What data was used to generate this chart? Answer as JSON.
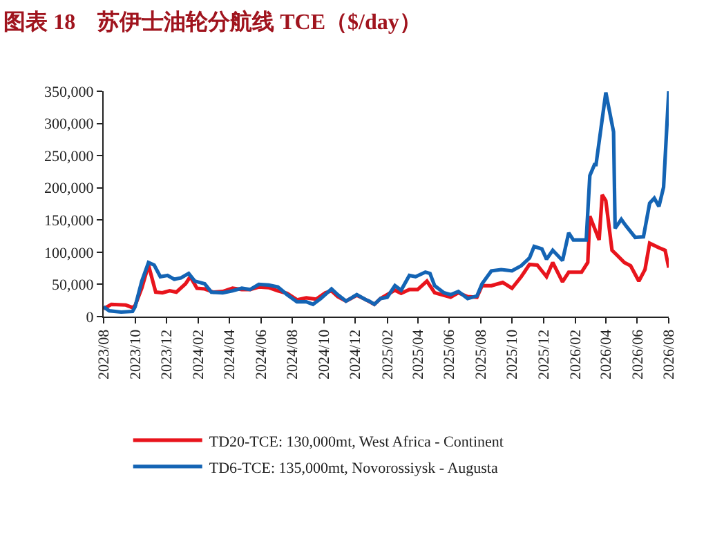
{
  "chart_data": {
    "type": "line",
    "title": "图表 18　苏伊士油轮分航线 TCE（$/day）",
    "xlim": [
      "2023-08-01",
      "2026-08-01"
    ],
    "xticks": [
      {
        "value": "2023-08",
        "label": "2023/08"
      },
      {
        "value": "2023-10",
        "label": "2023/10"
      },
      {
        "value": "2023-12",
        "label": "2023/12"
      },
      {
        "value": "2024-02",
        "label": "2024/02"
      },
      {
        "value": "2024-04",
        "label": "2024/04"
      },
      {
        "value": "2024-06",
        "label": "2024/06"
      },
      {
        "value": "2024-08",
        "label": "2024/08"
      },
      {
        "value": "2024-10",
        "label": "2024/10"
      },
      {
        "value": "2024-12",
        "label": "2024/12"
      },
      {
        "value": "2025-02",
        "label": "2025/02"
      },
      {
        "value": "2025-04",
        "label": "2025/04"
      },
      {
        "value": "2025-06",
        "label": "2025/06"
      },
      {
        "value": "2025-08",
        "label": "2025/08"
      },
      {
        "value": "2025-10",
        "label": "2025/10"
      },
      {
        "value": "2025-12",
        "label": "2025/12"
      },
      {
        "value": "2026-02",
        "label": "2026/02"
      },
      {
        "value": "2026-04",
        "label": "2026/04"
      },
      {
        "value": "2026-06",
        "label": "2026/06"
      },
      {
        "value": "2026-08",
        "label": "2026/08"
      }
    ],
    "ylim": [
      0,
      350000
    ],
    "yticks": [
      0,
      {
        "value": 50000,
        "label": "50,000"
      },
      {
        "value": 100000,
        "label": "100,000"
      },
      {
        "value": 150000,
        "label": "150,000"
      },
      {
        "value": 200000,
        "label": "200,000"
      },
      {
        "value": 250000,
        "label": "250,000"
      },
      {
        "value": 300000,
        "label": "300,000"
      },
      {
        "value": 350000,
        "label": "350,000"
      }
    ],
    "legend": "bottom",
    "marker": "none",
    "line_style": "solid",
    "series": [
      {
        "name": "TD20-TCE: 130,000mt, West Africa - Continent",
        "color": "#e8141c",
        "x": [
          "2023-08-01",
          "2023-08-16",
          "2023-09-13",
          "2023-09-26",
          "2023-10-01",
          "2023-10-14",
          "2023-10-27",
          "2023-11-10",
          "2023-11-23",
          "2023-12-07",
          "2023-12-20",
          "2024-01-07",
          "2024-01-16",
          "2024-01-29",
          "2024-02-13",
          "2024-03-01",
          "2024-03-19",
          "2024-04-07",
          "2024-04-25",
          "2024-05-11",
          "2024-05-28",
          "2024-06-16",
          "2024-07-04",
          "2024-07-22",
          "2024-08-10",
          "2024-08-28",
          "2024-09-16",
          "2024-10-04",
          "2024-10-16",
          "2024-10-28",
          "2024-11-13",
          "2024-12-04",
          "2024-12-22",
          "2025-01-07",
          "2025-01-19",
          "2025-02-16",
          "2025-02-28",
          "2025-03-16",
          "2025-04-01",
          "2025-04-19",
          "2025-05-04",
          "2025-05-22",
          "2025-06-04",
          "2025-06-19",
          "2025-07-07",
          "2025-07-25",
          "2025-08-04",
          "2025-08-22",
          "2025-09-13",
          "2025-10-01",
          "2025-10-19",
          "2025-11-04",
          "2025-11-19",
          "2025-12-07",
          "2025-12-19",
          "2026-01-07",
          "2026-01-19",
          "2026-02-13",
          "2026-02-25",
          "2026-03-01",
          "2026-03-19",
          "2026-03-25",
          "2026-04-01",
          "2026-04-13",
          "2026-04-22",
          "2026-05-07",
          "2026-05-19",
          "2026-06-04",
          "2026-06-16",
          "2026-06-25",
          "2026-07-13",
          "2026-07-25",
          "2026-08-01"
        ],
        "values": [
          12000,
          19000,
          18000,
          14000,
          17000,
          44000,
          80000,
          38000,
          37000,
          40000,
          38000,
          51000,
          62000,
          44000,
          43000,
          38000,
          39000,
          44000,
          42000,
          42000,
          46000,
          45000,
          40000,
          36000,
          26000,
          29000,
          27000,
          37000,
          40000,
          31000,
          24000,
          33000,
          26000,
          19000,
          28000,
          41000,
          36000,
          42000,
          42000,
          55000,
          37000,
          33000,
          30000,
          37000,
          31000,
          30000,
          48000,
          48000,
          53000,
          44000,
          62000,
          81000,
          80000,
          62000,
          84000,
          54000,
          69000,
          69000,
          84000,
          156000,
          119000,
          189000,
          180000,
          103000,
          96000,
          84000,
          79000,
          55000,
          73000,
          114000,
          107000,
          103000,
          76000
        ]
      },
      {
        "name": "TD6-TCE: 135,000mt, Novorossiysk - Augusta",
        "color": "#1464b4",
        "x": [
          "2023-08-01",
          "2023-08-12",
          "2023-09-04",
          "2023-09-26",
          "2023-10-01",
          "2023-10-14",
          "2023-10-27",
          "2023-11-07",
          "2023-11-19",
          "2023-12-03",
          "2023-12-16",
          "2023-12-29",
          "2024-01-13",
          "2024-01-25",
          "2024-02-13",
          "2024-02-26",
          "2024-03-19",
          "2024-04-07",
          "2024-04-25",
          "2024-05-11",
          "2024-05-28",
          "2024-06-16",
          "2024-07-04",
          "2024-07-22",
          "2024-08-10",
          "2024-08-28",
          "2024-09-10",
          "2024-09-25",
          "2024-10-16",
          "2024-10-28",
          "2024-11-13",
          "2024-12-04",
          "2024-12-22",
          "2024-12-28",
          "2025-01-07",
          "2025-01-19",
          "2025-02-01",
          "2025-02-16",
          "2025-02-28",
          "2025-03-16",
          "2025-03-28",
          "2025-04-16",
          "2025-04-25",
          "2025-05-04",
          "2025-05-22",
          "2025-06-04",
          "2025-06-19",
          "2025-07-07",
          "2025-07-25",
          "2025-08-04",
          "2025-08-22",
          "2025-09-10",
          "2025-10-01",
          "2025-10-19",
          "2025-11-04",
          "2025-11-13",
          "2025-11-28",
          "2025-12-07",
          "2025-12-19",
          "2026-01-07",
          "2026-01-19",
          "2026-01-28",
          "2026-02-22",
          "2026-03-01",
          "2026-03-10",
          "2026-03-13",
          "2026-04-01",
          "2026-04-16",
          "2026-04-19",
          "2026-05-01",
          "2026-05-10",
          "2026-05-28",
          "2026-06-13",
          "2026-06-25",
          "2026-07-04",
          "2026-07-13",
          "2026-07-22",
          "2026-08-01"
        ],
        "values": [
          15000,
          9000,
          7000,
          8000,
          15000,
          55000,
          84000,
          80000,
          62000,
          64000,
          58000,
          60000,
          67000,
          55000,
          51000,
          38000,
          37000,
          40000,
          44000,
          42000,
          50000,
          49000,
          46000,
          34000,
          23000,
          23000,
          19000,
          28000,
          43000,
          34000,
          24000,
          34000,
          26000,
          24000,
          19000,
          28000,
          30000,
          48000,
          41000,
          64000,
          62000,
          69000,
          67000,
          48000,
          37000,
          34000,
          39000,
          28000,
          32000,
          51000,
          71000,
          73000,
          71000,
          79000,
          91000,
          109000,
          105000,
          89000,
          103000,
          87000,
          130000,
          119000,
          119000,
          219000,
          236000,
          236000,
          348000,
          287000,
          137000,
          151000,
          141000,
          123000,
          124000,
          176000,
          184000,
          171000,
          201000,
          350000
        ]
      }
    ]
  }
}
